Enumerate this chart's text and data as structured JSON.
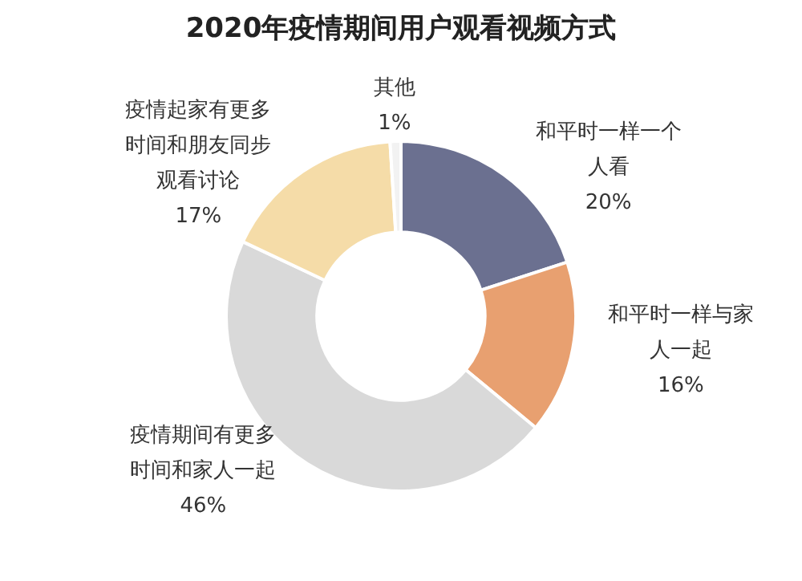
{
  "chart_data": {
    "type": "donut",
    "title": "2020年疫情期间用户观看视频方式",
    "categories": [
      "和平时一样一个人看",
      "和平时一样与家人一起",
      "疫情期间有更多时间和家人一起",
      "疫情起家有更多时间和朋友同步观看讨论",
      "其他"
    ],
    "values": [
      20,
      16,
      46,
      17,
      1
    ],
    "colors": [
      "#6b7090",
      "#e8a070",
      "#d9d9d9",
      "#f5dca8",
      "#f2f2f2"
    ],
    "value_labels": [
      "20%",
      "16%",
      "46%",
      "17%",
      "1%"
    ],
    "legend": false
  }
}
